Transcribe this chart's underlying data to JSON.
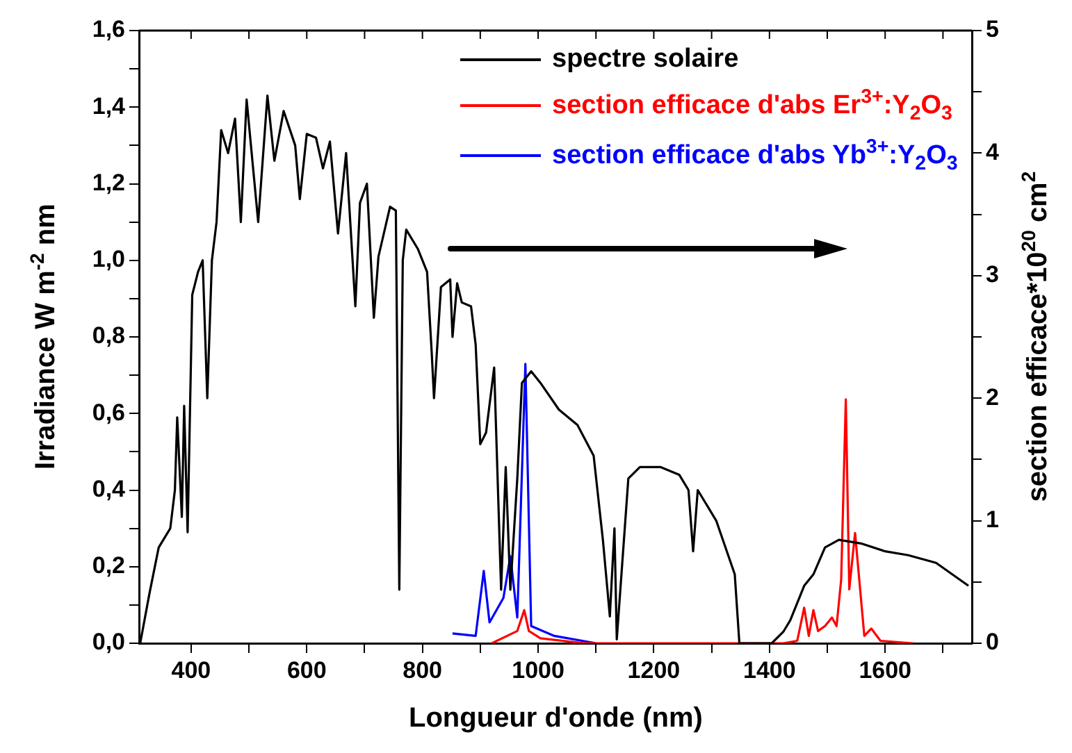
{
  "chart_data": {
    "type": "line",
    "xlabel": "Longueur d'onde (nm)",
    "ylabel": "Irradiance W m$^{-2}$ nm",
    "y2label": "section efficace*10$^{20}$ cm$^{2}$",
    "xlim": [
      310,
      1750
    ],
    "xticks": [
      400,
      {
        "value": 500,
        "label": null
      },
      600,
      {
        "value": 700,
        "label": null
      },
      800,
      {
        "value": 900,
        "label": null
      },
      1000,
      {
        "value": 1100,
        "label": null
      },
      1200,
      {
        "value": 1300,
        "label": null
      },
      1400,
      {
        "value": 1500,
        "label": null
      },
      1600,
      {
        "value": 1700,
        "label": null
      }
    ],
    "ylim": [
      0,
      1.6
    ],
    "yticks": [
      {
        "value": 0,
        "label": "0,0"
      },
      {
        "value": 0.1,
        "label": null
      },
      {
        "value": 0.2,
        "label": "0,2"
      },
      {
        "value": 0.3,
        "label": null
      },
      {
        "value": 0.4,
        "label": "0,4"
      },
      {
        "value": 0.5,
        "label": null
      },
      {
        "value": 0.6,
        "label": "0,6"
      },
      {
        "value": 0.7,
        "label": null
      },
      {
        "value": 0.8,
        "label": "0,8"
      },
      {
        "value": 0.9,
        "label": null
      },
      {
        "value": 1,
        "label": "1,0"
      },
      {
        "value": 1.1,
        "label": null
      },
      {
        "value": 1.2,
        "label": "1,2"
      },
      {
        "value": 1.3,
        "label": null
      },
      {
        "value": 1.4,
        "label": "1,4"
      },
      {
        "value": 1.5,
        "label": null
      },
      {
        "value": 1.6,
        "label": "1,6"
      }
    ],
    "y2lim": [
      0,
      5
    ],
    "y2ticks": [
      0,
      {
        "value": 0.5,
        "label": null
      },
      1,
      {
        "value": 1.5,
        "label": null
      },
      2,
      {
        "value": 2.5,
        "label": null
      },
      3,
      {
        "value": 3.5,
        "label": null
      },
      4,
      {
        "value": 4.5,
        "label": null
      },
      5
    ],
    "grid": false,
    "legend": "top",
    "marker": "none",
    "line_style": "solid",
    "series": [
      {
        "name": "spectre solaire",
        "color": "#000000",
        "x": [
          312,
          328,
          344,
          364,
          372,
          376,
          384,
          388,
          394,
          402,
          412,
          420,
          428,
          436,
          444,
          452,
          464,
          476,
          486,
          496,
          516,
          532,
          544,
          560,
          580,
          588,
          600,
          616,
          628,
          640,
          654,
          668,
          684,
          692,
          704,
          716,
          724,
          744,
          754,
          760,
          766,
          772,
          792,
          808,
          816,
          820,
          832,
          848,
          852,
          860,
          868,
          884,
          892,
          900,
          910,
          924,
          936,
          944,
          952,
          964,
          972,
          988,
          1004,
          1036,
          1068,
          1096,
          1112,
          1124,
          1132,
          1136,
          1156,
          1176,
          1212,
          1244,
          1260,
          1268,
          1276,
          1308,
          1340,
          1348,
          1404,
          1424,
          1436,
          1460,
          1476,
          1496,
          1508,
          1520,
          1560,
          1600,
          1640,
          1688,
          1744
        ],
        "values": [
          0.0,
          0.13,
          0.25,
          0.3,
          0.4,
          0.59,
          0.33,
          0.62,
          0.29,
          0.91,
          0.97,
          1.0,
          0.64,
          1.0,
          1.1,
          1.34,
          1.28,
          1.37,
          1.1,
          1.42,
          1.1,
          1.43,
          1.26,
          1.39,
          1.3,
          1.16,
          1.33,
          1.32,
          1.24,
          1.31,
          1.07,
          1.28,
          0.88,
          1.15,
          1.2,
          0.85,
          1.01,
          1.14,
          1.13,
          0.14,
          1.0,
          1.08,
          1.03,
          0.97,
          0.76,
          0.64,
          0.93,
          0.95,
          0.8,
          0.94,
          0.89,
          0.88,
          0.78,
          0.52,
          0.55,
          0.72,
          0.14,
          0.46,
          0.14,
          0.43,
          0.68,
          0.71,
          0.68,
          0.61,
          0.57,
          0.49,
          0.27,
          0.07,
          0.3,
          0.01,
          0.43,
          0.46,
          0.46,
          0.44,
          0.4,
          0.24,
          0.4,
          0.32,
          0.18,
          0.0,
          0.0,
          0.03,
          0.06,
          0.15,
          0.18,
          0.25,
          0.26,
          0.27,
          0.26,
          0.24,
          0.23,
          0.21,
          0.15
        ]
      },
      {
        "name": "section efficace d'abs Er$^{3+}$:Y$_{2}$O$_{3}$",
        "color": "#ff0000",
        "axis": "y2",
        "x": [
          920,
          964,
          976,
          984,
          1004,
          1080,
          1424,
          1448,
          1460,
          1468,
          1476,
          1484,
          1496,
          1508,
          1516,
          1524,
          1532,
          1538,
          1548,
          1556,
          1564,
          1576,
          1592,
          1648
        ],
        "values": [
          0.0,
          0.1,
          0.27,
          0.1,
          0.04,
          0.0,
          0.0,
          0.02,
          0.29,
          0.06,
          0.27,
          0.1,
          0.14,
          0.21,
          0.14,
          0.52,
          1.99,
          0.44,
          0.9,
          0.48,
          0.06,
          0.12,
          0.02,
          0.0
        ]
      },
      {
        "name": "section efficace d'abs Yb$^{3+}$:Y$_{2}$O$_{3}$",
        "color": "#0000ff",
        "axis": "y2",
        "x": [
          852,
          892,
          906,
          916,
          940,
          952,
          964,
          978,
          988,
          1028,
          1100
        ],
        "values": [
          0.08,
          0.06,
          0.59,
          0.17,
          0.37,
          0.71,
          0.21,
          2.28,
          0.14,
          0.06,
          0.0
        ]
      }
    ]
  }
}
